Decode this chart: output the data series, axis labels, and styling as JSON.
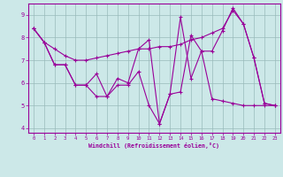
{
  "xlabel": "Windchill (Refroidissement éolien,°C)",
  "background_color": "#cce8e8",
  "line_color": "#990099",
  "grid_color": "#99bbbb",
  "xlim": [
    -0.5,
    23.5
  ],
  "ylim": [
    3.8,
    9.5
  ],
  "yticks": [
    4,
    5,
    6,
    7,
    8,
    9
  ],
  "xticks": [
    0,
    1,
    2,
    3,
    4,
    5,
    6,
    7,
    8,
    9,
    10,
    11,
    12,
    13,
    14,
    15,
    16,
    17,
    18,
    19,
    20,
    21,
    22,
    23
  ],
  "line1_x": [
    0,
    1,
    2,
    3,
    4,
    5,
    6,
    7,
    8,
    9,
    10,
    11,
    12,
    13,
    14,
    15,
    16,
    17,
    18,
    19,
    20,
    21,
    22,
    23
  ],
  "line1_y": [
    8.4,
    7.8,
    7.5,
    7.2,
    7.0,
    7.0,
    7.1,
    7.2,
    7.3,
    7.4,
    7.5,
    7.5,
    7.6,
    7.6,
    7.7,
    7.9,
    8.0,
    8.2,
    8.4,
    9.2,
    8.6,
    7.1,
    5.1,
    5.0
  ],
  "line2_x": [
    0,
    1,
    2,
    3,
    4,
    5,
    6,
    7,
    8,
    9,
    10,
    11,
    12,
    13,
    14,
    15,
    16,
    17,
    18,
    19,
    20,
    21,
    22,
    23
  ],
  "line2_y": [
    8.4,
    7.8,
    6.8,
    6.8,
    5.9,
    5.9,
    6.4,
    5.4,
    6.2,
    6.0,
    7.5,
    7.9,
    4.2,
    5.5,
    8.9,
    6.2,
    7.4,
    7.4,
    8.3,
    9.3,
    8.6,
    7.1,
    5.1,
    5.0
  ],
  "line3_x": [
    0,
    1,
    2,
    3,
    4,
    5,
    6,
    7,
    8,
    9,
    10,
    11,
    12,
    13,
    14,
    15,
    16,
    17,
    18,
    19,
    20,
    21,
    22,
    23
  ],
  "line3_y": [
    8.4,
    7.8,
    6.8,
    6.8,
    5.9,
    5.9,
    5.4,
    5.4,
    5.9,
    5.9,
    6.5,
    5.0,
    4.2,
    5.5,
    5.6,
    8.1,
    7.4,
    5.3,
    5.2,
    5.1,
    5.0,
    5.0,
    5.0,
    5.0
  ]
}
